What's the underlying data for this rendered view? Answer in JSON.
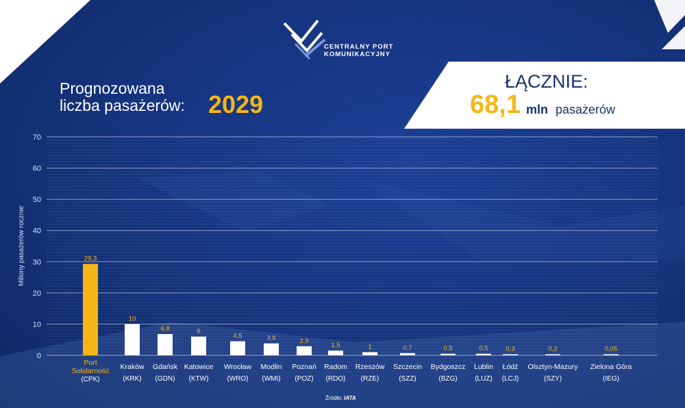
{
  "header": {
    "logo_line1": "CENTRALNY PORT",
    "logo_line2": "KOMUNIKACYJNY",
    "title_line1": "Prognozowana",
    "title_line2": "liczba pasażerów:",
    "year": "2029"
  },
  "total": {
    "label": "ŁĄCZNIE:",
    "value": "68,1",
    "unit": "mln",
    "suffix": "pasażerów"
  },
  "source": {
    "prefix": "Źródło:",
    "name": "IATA"
  },
  "colors": {
    "highlight": "#f5b617",
    "bar": "#ffffff",
    "grid": "#8fa5d4",
    "text": "#ffffff"
  },
  "chart_data": {
    "type": "bar",
    "ylabel": "Miliony pasażerów rocznie",
    "ylim": [
      0,
      70
    ],
    "yticks": [
      0,
      10,
      20,
      30,
      40,
      50,
      60,
      70
    ],
    "grid": true,
    "categories": [
      {
        "name": "Port Solidarność",
        "code": "(CPK)",
        "value": 29.3,
        "label": "29,3",
        "highlight": true
      },
      {
        "name": "Kraków",
        "code": "(KRK)",
        "value": 10,
        "label": "10"
      },
      {
        "name": "Gdańsk",
        "code": "(GDN)",
        "value": 6.8,
        "label": "6,8"
      },
      {
        "name": "Katowice",
        "code": "(KTW)",
        "value": 6,
        "label": "6"
      },
      {
        "name": "Wrocław",
        "code": "(WRO)",
        "value": 4.5,
        "label": "4,5"
      },
      {
        "name": "Modlin",
        "code": "(WMI)",
        "value": 3.8,
        "label": "3,8"
      },
      {
        "name": "Poznań",
        "code": "(POZ)",
        "value": 2.9,
        "label": "2,9"
      },
      {
        "name": "Radom",
        "code": "(RDO)",
        "value": 1.5,
        "label": "1,5"
      },
      {
        "name": "Rzeszów",
        "code": "(RZE)",
        "value": 1,
        "label": "1"
      },
      {
        "name": "Szczecin",
        "code": "(SZZ)",
        "value": 0.7,
        "label": "0,7"
      },
      {
        "name": "Bydgoszcz",
        "code": "(BZG)",
        "value": 0.5,
        "label": "0,5"
      },
      {
        "name": "Lublin",
        "code": "(LUZ)",
        "value": 0.5,
        "label": "0,5"
      },
      {
        "name": "Łódź",
        "code": "(LCJ)",
        "value": 0.3,
        "label": "0,3"
      },
      {
        "name": "Olsztyn-Mazury",
        "code": "(SZY)",
        "value": 0.2,
        "label": "0,2"
      },
      {
        "name": "Zielona Góra",
        "code": "(IEG)",
        "value": 0.05,
        "label": "0,05"
      }
    ]
  }
}
